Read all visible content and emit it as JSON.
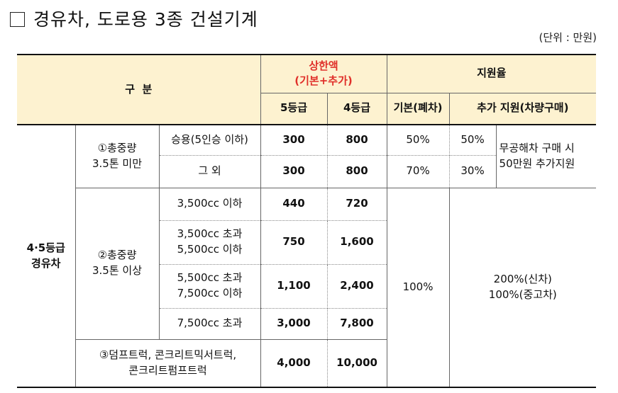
{
  "title": "경유차, 도로용 3종 건설기계",
  "unit": "(단위 : 만원)",
  "header": {
    "category": "구  분",
    "cap_line1": "상한액",
    "cap_line2": "(기본+추가)",
    "rate": "지원율",
    "grade5": "5등급",
    "grade4": "4등급",
    "basic": "기본(폐차)",
    "extra": "추가 지원(차량구매)"
  },
  "group": {
    "line1": "4·5등급",
    "line2": "경유차"
  },
  "sub1": {
    "label_line1": "①총중량",
    "label_line2": "3.5톤 미만",
    "rows": [
      {
        "item": "승용(5인승 이하)",
        "g5": "300",
        "g4": "800",
        "basic": "50%",
        "extra": "50%"
      },
      {
        "item": "그 외",
        "g5": "300",
        "g4": "800",
        "basic": "70%",
        "extra": "30%"
      }
    ],
    "note_line1": "무공해차 구매 시",
    "note_line2": "50만원 추가지원"
  },
  "sub2": {
    "label_line1": "②총중량",
    "label_line2": "3.5톤 이상",
    "rows": [
      {
        "item_line1": "3,500cc 이하",
        "item_line2": "",
        "g5": "440",
        "g4": "720"
      },
      {
        "item_line1": "3,500cc 초과",
        "item_line2": "5,500cc 이하",
        "g5": "750",
        "g4": "1,600"
      },
      {
        "item_line1": "5,500cc 초과",
        "item_line2": "7,500cc 이하",
        "g5": "1,100",
        "g4": "2,400"
      },
      {
        "item_line1": "7,500cc 초과",
        "item_line2": "",
        "g5": "3,000",
        "g4": "7,800"
      }
    ],
    "basic": "100%",
    "extra_line1": "200%(신차)",
    "extra_line2": "100%(중고차)"
  },
  "sub3": {
    "label_line1": "③덤프트럭, 콘크리트믹서트럭,",
    "label_line2": "콘크리트펌프트럭",
    "g5": "4,000",
    "g4": "10,000"
  }
}
